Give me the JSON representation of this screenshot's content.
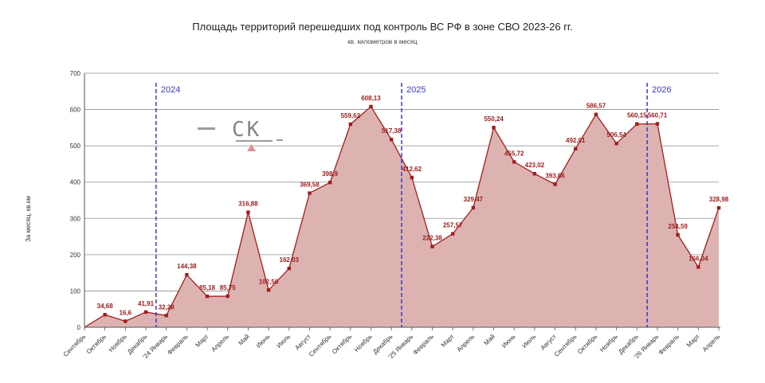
{
  "chart_data": {
    "type": "area",
    "title": "Площадь территорий перешедших под контроль ВС РФ в зоне СВО 2023-26 гг.",
    "subtitle": "кв. километров в месяц",
    "ylabel": "За месяц, кв.км",
    "ylim": [
      0,
      700
    ],
    "yticks": [
      0,
      100,
      200,
      300,
      400,
      500,
      600,
      700
    ],
    "grid": true,
    "colors": {
      "line": "#a11d1d",
      "fill": "#ddb3b1",
      "marker": "#a11d1d",
      "year_line": "#2b2bd4",
      "label": "#9b1b1b"
    },
    "categories": [
      "Сентябрь",
      "Октябрь",
      "Ноябрь",
      "Декабрь",
      "'24 Январь",
      "Февраль",
      "Март",
      "Апрель",
      "Май",
      "Июнь",
      "Июль",
      "Август",
      "Сентябрь",
      "Октябрь",
      "Ноябрь",
      "Декабрь",
      "'25 Январь",
      "Февраль",
      "Март",
      "Апрель",
      "Май",
      "Июнь",
      "Июль",
      "Август",
      "Сентябрь",
      "Октябрь",
      "Ноябрь",
      "Декабрь",
      "'26 Январь",
      "Февраль",
      "Март",
      "Апрель"
    ],
    "values": [
      null,
      34.68,
      16.6,
      41.91,
      32.28,
      144.38,
      85.18,
      85.75,
      316.88,
      102.56,
      162.03,
      369.58,
      398.9,
      559.62,
      608.13,
      517.38,
      412.62,
      222.38,
      257.57,
      329.47,
      550.24,
      455.72,
      423.02,
      393.86,
      492.01,
      586.57,
      506.54,
      560.15,
      560.71,
      254.59,
      166.04,
      328.98
    ],
    "labels": [
      "",
      "34,68",
      "16,6",
      "41,91",
      "32,28",
      "144,38",
      "85,18",
      "85,75",
      "316,88",
      "102,56",
      "162,03",
      "369,58",
      "398,9",
      "559,62",
      "608,13",
      "517,38",
      "412,62",
      "222,38",
      "257,57",
      "329,47",
      "550,24",
      "455,72",
      "423,02",
      "393,86",
      "492,01",
      "586,57",
      "506,54",
      "560,15",
      "560,71",
      "254,59",
      "166,04",
      "328,98"
    ],
    "year_markers": [
      {
        "label": "2024",
        "position": 3.5
      },
      {
        "label": "2025",
        "position": 15.5
      },
      {
        "label": "2026",
        "position": 27.5
      }
    ],
    "watermark": "СК"
  }
}
